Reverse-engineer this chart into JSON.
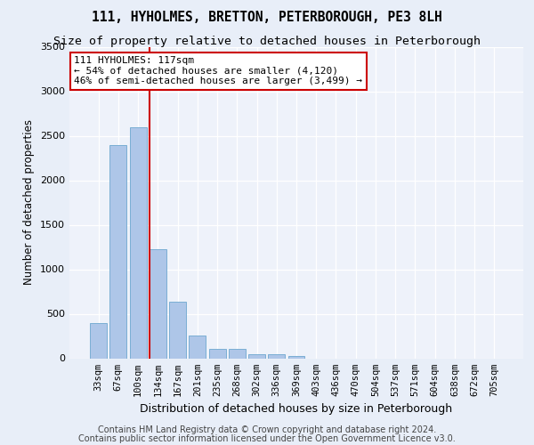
{
  "title_line1": "111, HYHOLMES, BRETTON, PETERBOROUGH, PE3 8LH",
  "title_line2": "Size of property relative to detached houses in Peterborough",
  "xlabel": "Distribution of detached houses by size in Peterborough",
  "ylabel": "Number of detached properties",
  "categories": [
    "33sqm",
    "67sqm",
    "100sqm",
    "134sqm",
    "167sqm",
    "201sqm",
    "235sqm",
    "268sqm",
    "302sqm",
    "336sqm",
    "369sqm",
    "403sqm",
    "436sqm",
    "470sqm",
    "504sqm",
    "537sqm",
    "571sqm",
    "604sqm",
    "638sqm",
    "672sqm",
    "705sqm"
  ],
  "bar_values": [
    400,
    2400,
    2600,
    1230,
    640,
    260,
    110,
    110,
    50,
    50,
    30,
    0,
    0,
    0,
    0,
    0,
    0,
    0,
    0,
    0,
    0
  ],
  "bar_color": "#aec6e8",
  "bar_edge_color": "#7aaed4",
  "annotation_text": "111 HYHOLMES: 117sqm\n← 54% of detached houses are smaller (4,120)\n46% of semi-detached houses are larger (3,499) →",
  "annotation_box_color": "#ffffff",
  "annotation_box_edge_color": "#cc0000",
  "vline_color": "#cc0000",
  "vline_x": 2.57,
  "ylim": [
    0,
    3500
  ],
  "yticks": [
    0,
    500,
    1000,
    1500,
    2000,
    2500,
    3000,
    3500
  ],
  "footer_line1": "Contains HM Land Registry data © Crown copyright and database right 2024.",
  "footer_line2": "Contains public sector information licensed under the Open Government Licence v3.0.",
  "background_color": "#e8eef8",
  "plot_background_color": "#eef2fa",
  "title_fontsize": 10.5,
  "subtitle_fontsize": 9.5,
  "ylabel_fontsize": 8.5,
  "xlabel_fontsize": 9,
  "tick_fontsize": 7.5,
  "footer_fontsize": 7,
  "annotation_fontsize": 8
}
